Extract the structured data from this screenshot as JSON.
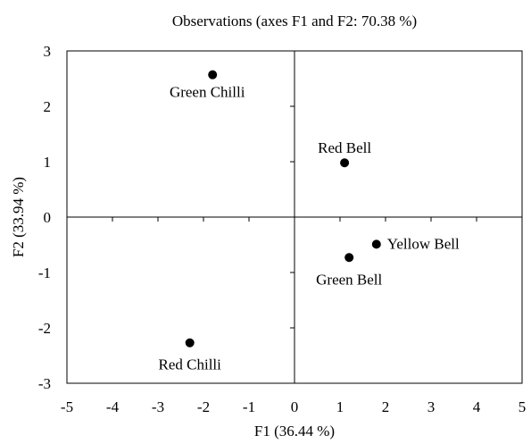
{
  "chart_data": {
    "type": "scatter",
    "title": "Observations (axes F1 and F2: 70.38 %)",
    "xlabel": "F1 (36.44 %)",
    "ylabel": "F2 (33.94 %)",
    "xlim": [
      -5,
      5
    ],
    "ylim": [
      -3,
      3
    ],
    "x_ticks": [
      "-5",
      "-4",
      "-3",
      "-2",
      "-1",
      "0",
      "1",
      "2",
      "3",
      "4",
      "5"
    ],
    "y_ticks": [
      "3",
      "2",
      "1",
      "0",
      "-1",
      "-2",
      "-3"
    ],
    "grid": false,
    "points": [
      {
        "label": "Green Chilli",
        "x": -1.8,
        "y": 2.57
      },
      {
        "label": "Red Bell",
        "x": 1.1,
        "y": 0.98
      },
      {
        "label": "Yellow Bell",
        "x": 1.8,
        "y": -0.49
      },
      {
        "label": "Green Bell",
        "x": 1.2,
        "y": -0.73
      },
      {
        "label": "Red Chilli",
        "x": -2.3,
        "y": -2.27
      }
    ]
  }
}
